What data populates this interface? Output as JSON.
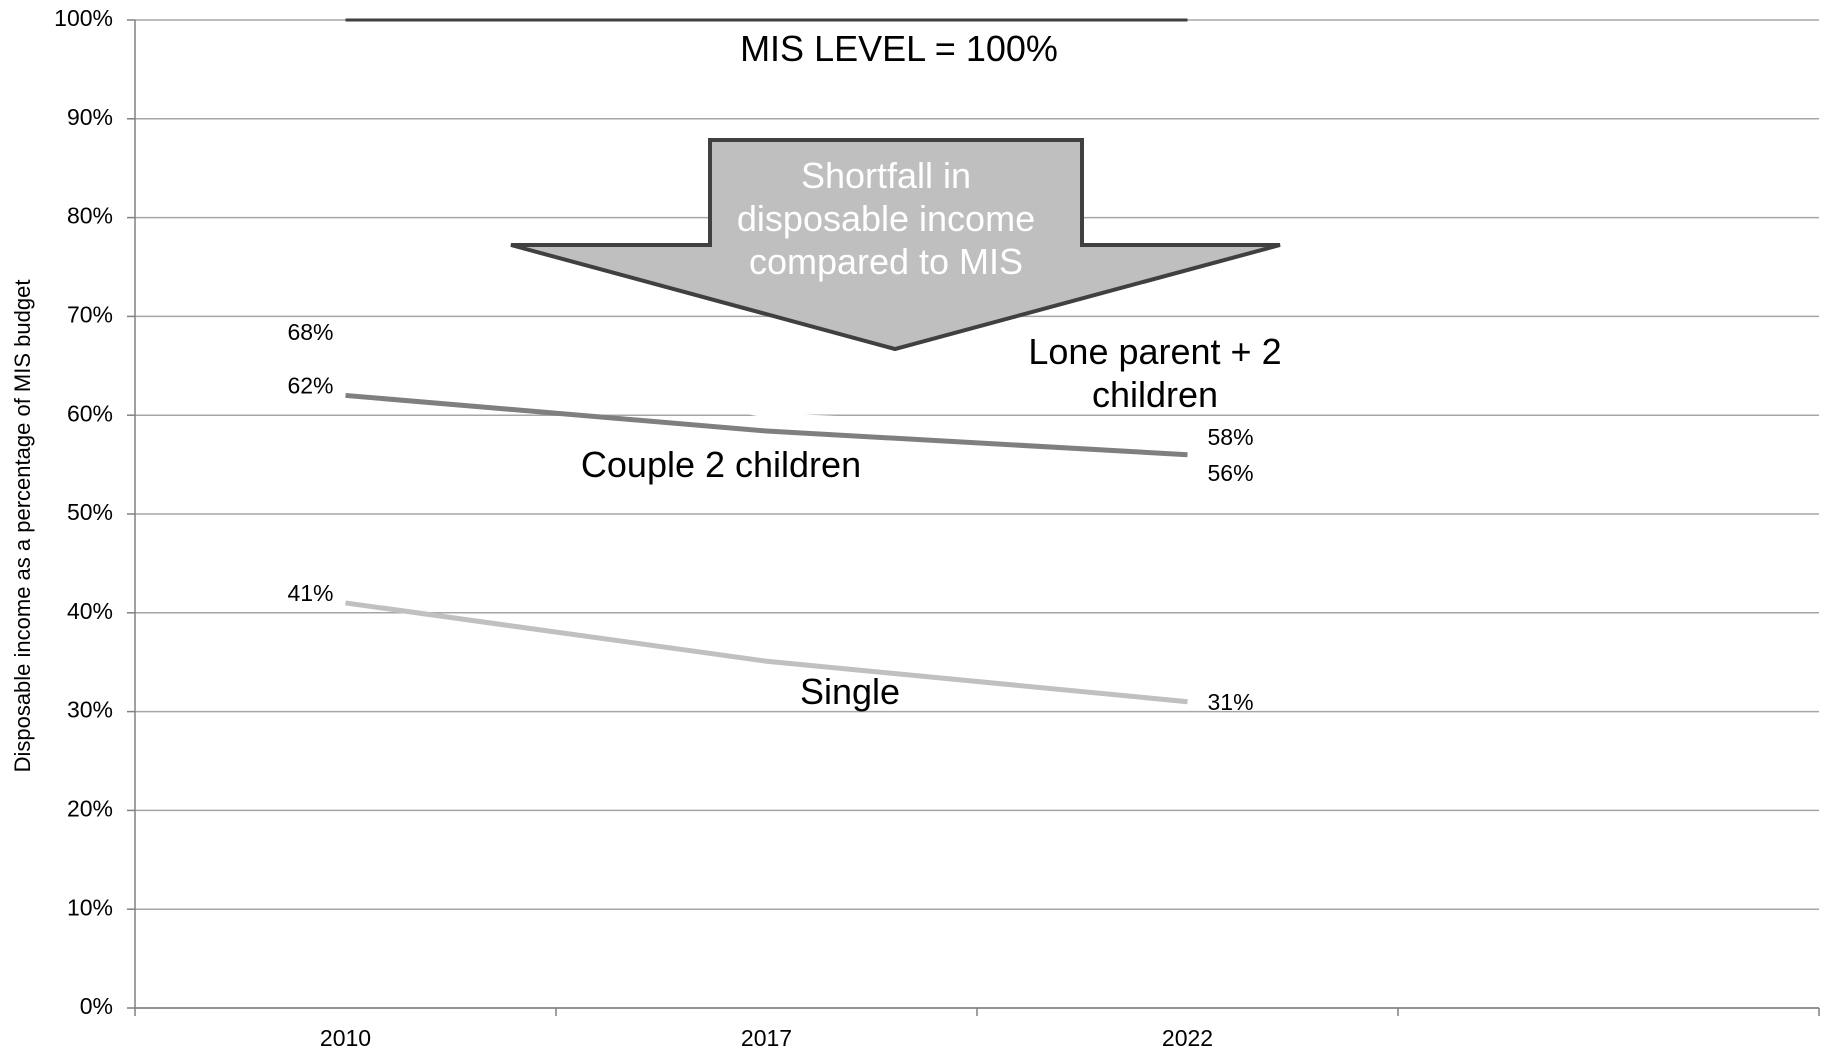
{
  "chart_data": {
    "type": "line",
    "y_label": "Disposable income as a percentage of MIS budget",
    "categories": [
      "2010",
      "2017",
      "2022",
      null
    ],
    "series": [
      {
        "name": "MIS LEVEL = 100%",
        "color": "#404040",
        "values": [
          100,
          100,
          100,
          null
        ]
      },
      {
        "name": "Lone parent + 2 children",
        "color": "#ffffff",
        "values": [
          68,
          60,
          58,
          null
        ],
        "value_labels": [
          "68%",
          null,
          "58%",
          null
        ]
      },
      {
        "name": "Couple 2 children",
        "color": "#7f7f7f",
        "values": [
          62,
          58.4,
          56,
          null
        ],
        "value_labels": [
          "62%",
          null,
          "56%",
          null
        ]
      },
      {
        "name": "Single",
        "color": "#c0c0c0",
        "values": [
          41,
          35.1,
          31,
          null
        ],
        "value_labels": [
          "41%",
          null,
          "31%",
          null
        ]
      }
    ],
    "annotations": [
      "Shortfall in disposable income compared to MIS"
    ],
    "ylim": [
      0,
      100
    ],
    "yticks": [
      {
        "value": 0,
        "label": "0%"
      },
      {
        "value": 10,
        "label": "10%"
      },
      {
        "value": 20,
        "label": "20%"
      },
      {
        "value": 30,
        "label": "30%"
      },
      {
        "value": 40,
        "label": "40%"
      },
      {
        "value": 50,
        "label": "50%"
      },
      {
        "value": 60,
        "label": "60%"
      },
      {
        "value": 70,
        "label": "70%"
      },
      {
        "value": 80,
        "label": "80%"
      },
      {
        "value": 90,
        "label": "90%"
      },
      {
        "value": 100,
        "label": "100%"
      }
    ],
    "grid": true
  }
}
